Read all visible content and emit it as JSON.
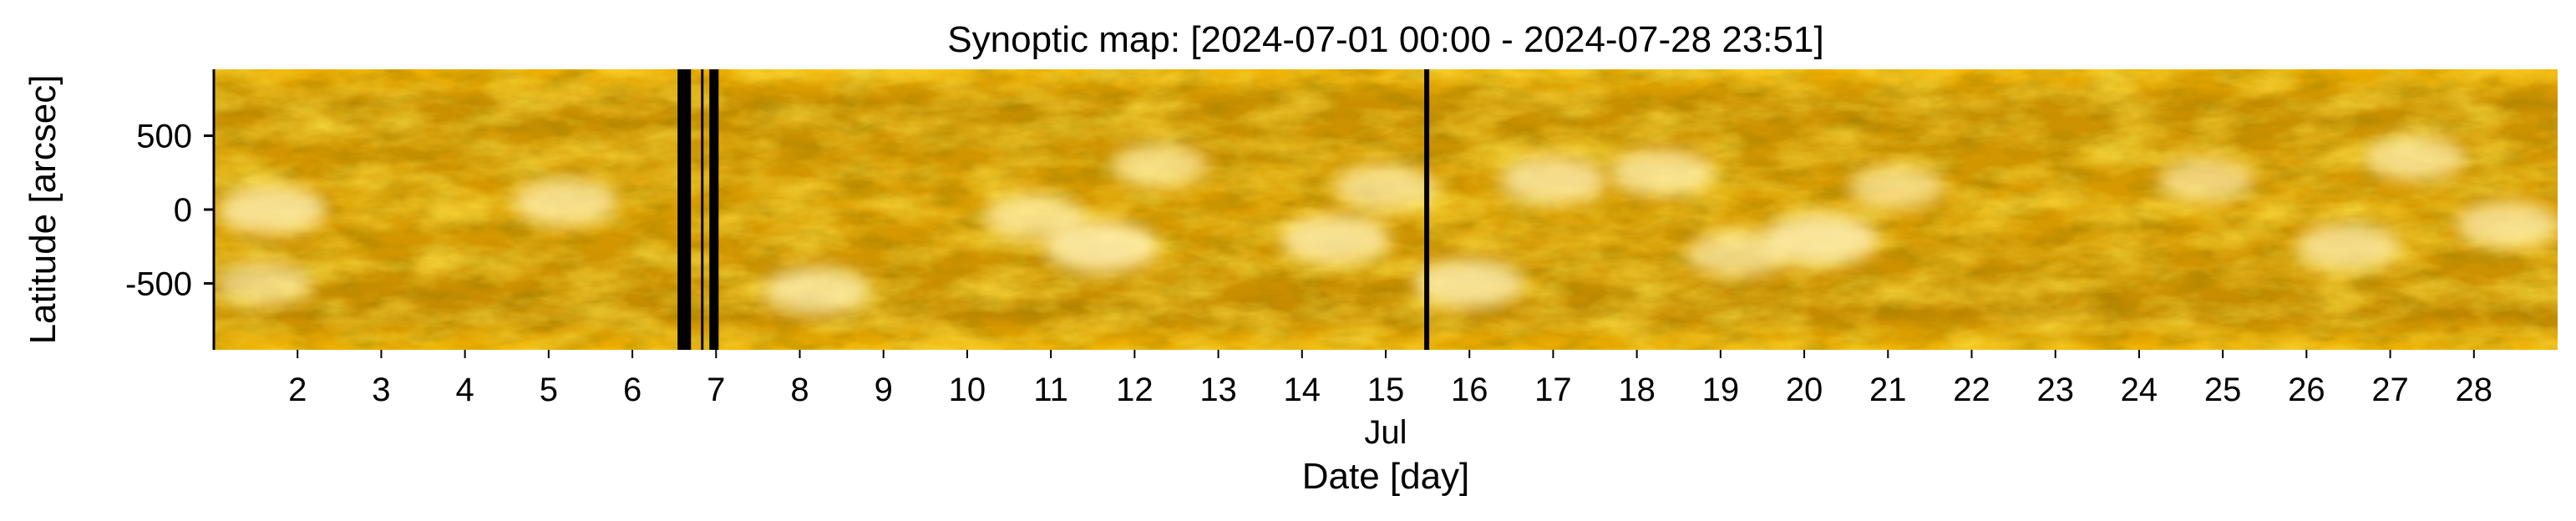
{
  "chart_data": {
    "type": "heatmap",
    "title": "Synoptic map: [2024-07-01 00:00 - 2024-07-28 23:51]",
    "xlabel": "Date [day]",
    "ylabel": "Latitude [arcsec]",
    "x_month_label": "Jul",
    "x_range": [
      "2024-07-01 00:00",
      "2024-07-28 23:51"
    ],
    "x_ticks": [
      "2",
      "3",
      "4",
      "5",
      "6",
      "7",
      "8",
      "9",
      "10",
      "11",
      "12",
      "13",
      "14",
      "15",
      "16",
      "17",
      "18",
      "19",
      "20",
      "21",
      "22",
      "23",
      "24",
      "25",
      "26",
      "27",
      "28"
    ],
    "y_ticks": [
      "500",
      "0",
      "-500"
    ],
    "y_tick_values": [
      500,
      0,
      -500
    ],
    "ylim": [
      -950,
      950
    ],
    "colormap": [
      "#3a2400",
      "#7a5200",
      "#c58a00",
      "#eaa900",
      "#fff0b0"
    ],
    "data_gaps_day": [
      [
        6.54,
        6.7
      ],
      [
        6.82,
        6.845
      ],
      [
        6.92,
        7.03
      ],
      [
        15.46,
        15.52
      ]
    ],
    "bright_regions": [
      {
        "day": 1.7,
        "lat": 0,
        "intensity": 0.85
      },
      {
        "day": 1.6,
        "lat": -500,
        "intensity": 0.6
      },
      {
        "day": 5.2,
        "lat": 50,
        "intensity": 0.75
      },
      {
        "day": 8.2,
        "lat": -550,
        "intensity": 0.8
      },
      {
        "day": 10.8,
        "lat": -50,
        "intensity": 0.7
      },
      {
        "day": 11.6,
        "lat": -250,
        "intensity": 0.95
      },
      {
        "day": 12.3,
        "lat": 300,
        "intensity": 0.6
      },
      {
        "day": 14.4,
        "lat": -200,
        "intensity": 0.85
      },
      {
        "day": 15.0,
        "lat": 150,
        "intensity": 0.7
      },
      {
        "day": 16.0,
        "lat": -500,
        "intensity": 0.85
      },
      {
        "day": 17.0,
        "lat": 200,
        "intensity": 0.8
      },
      {
        "day": 18.3,
        "lat": 250,
        "intensity": 0.75
      },
      {
        "day": 19.2,
        "lat": -300,
        "intensity": 0.7
      },
      {
        "day": 20.2,
        "lat": -200,
        "intensity": 0.95
      },
      {
        "day": 21.1,
        "lat": 150,
        "intensity": 0.6
      },
      {
        "day": 24.8,
        "lat": 200,
        "intensity": 0.6
      },
      {
        "day": 26.5,
        "lat": -250,
        "intensity": 0.75
      },
      {
        "day": 27.3,
        "lat": 350,
        "intensity": 0.7
      },
      {
        "day": 28.4,
        "lat": -100,
        "intensity": 0.75
      }
    ]
  }
}
